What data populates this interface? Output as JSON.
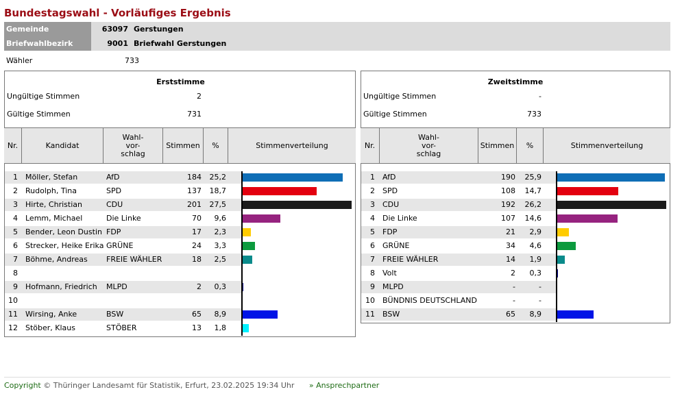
{
  "title": "Bundestagswahl - Vorläufiges Ergebnis",
  "info": {
    "gemeinde_label": "Gemeinde",
    "gemeinde_nr": "63097",
    "gemeinde_name": "Gerstungen",
    "bezirk_label": "Briefwahlbezirk",
    "bezirk_nr": "9001",
    "bezirk_name": "Briefwahl Gerstungen"
  },
  "waehler": {
    "label": "Wähler",
    "value": "733"
  },
  "erst": {
    "title": "Erststimme",
    "ungueltig_label": "Ungültige Stimmen",
    "ungueltig_value": "2",
    "gueltig_label": "Gültige Stimmen",
    "gueltig_value": "731",
    "headers": {
      "nr": "Nr.",
      "kandidat": "Kandidat",
      "wahl": "Wahl-\nvor-\nschlag",
      "stimmen": "Stimmen",
      "pct": "%",
      "vert": "Stimmenverteilung"
    },
    "rows": [
      {
        "nr": "1",
        "kandidat": "Möller, Stefan",
        "partei": "AfD",
        "stimmen": "184",
        "pct": "25,2",
        "value": 25.2,
        "color": "#0f6eb6"
      },
      {
        "nr": "2",
        "kandidat": "Rudolph, Tina",
        "partei": "SPD",
        "stimmen": "137",
        "pct": "18,7",
        "value": 18.7,
        "color": "#e3000f"
      },
      {
        "nr": "3",
        "kandidat": "Hirte, Christian",
        "partei": "CDU",
        "stimmen": "201",
        "pct": "27,5",
        "value": 27.5,
        "color": "#1b1b1b"
      },
      {
        "nr": "4",
        "kandidat": "Lemm, Michael",
        "partei": "Die Linke",
        "stimmen": "70",
        "pct": "9,6",
        "value": 9.6,
        "color": "#96237f"
      },
      {
        "nr": "5",
        "kandidat": "Bender, Leon Dustin",
        "partei": "FDP",
        "stimmen": "17",
        "pct": "2,3",
        "value": 2.3,
        "color": "#ffcc00"
      },
      {
        "nr": "6",
        "kandidat": "Strecker, Heike Erika",
        "partei": "GRÜNE",
        "stimmen": "24",
        "pct": "3,3",
        "value": 3.3,
        "color": "#0c9a3e"
      },
      {
        "nr": "7",
        "kandidat": "Böhme, Andreas",
        "partei": "FREIE WÄHLER",
        "stimmen": "18",
        "pct": "2,5",
        "value": 2.5,
        "color": "#0a8b8b"
      },
      {
        "nr": "8",
        "kandidat": "",
        "partei": "",
        "stimmen": "",
        "pct": "",
        "value": 0,
        "color": "#000000"
      },
      {
        "nr": "9",
        "kandidat": "Hofmann, Friedrich",
        "partei": "MLPD",
        "stimmen": "2",
        "pct": "0,3",
        "value": 0.3,
        "color": "#00008b"
      },
      {
        "nr": "10",
        "kandidat": "",
        "partei": "",
        "stimmen": "",
        "pct": "",
        "value": 0,
        "color": "#000000"
      },
      {
        "nr": "11",
        "kandidat": "Wirsing, Anke",
        "partei": "BSW",
        "stimmen": "65",
        "pct": "8,9",
        "value": 8.9,
        "color": "#0014e6"
      },
      {
        "nr": "12",
        "kandidat": "Stöber, Klaus",
        "partei": "STÖBER",
        "stimmen": "13",
        "pct": "1,8",
        "value": 1.8,
        "color": "#00f0ff"
      }
    ]
  },
  "zweit": {
    "title": "Zweitstimme",
    "ungueltig_label": "Ungültige Stimmen",
    "ungueltig_value": "-",
    "gueltig_label": "Gültige Stimmen",
    "gueltig_value": "733",
    "headers": {
      "nr": "Nr.",
      "wahl": "Wahl-\nvor-\nschlag",
      "stimmen": "Stimmen",
      "pct": "%",
      "vert": "Stimmenverteilung"
    },
    "rows": [
      {
        "nr": "1",
        "partei": "AfD",
        "stimmen": "190",
        "pct": "25,9",
        "value": 25.9,
        "color": "#0f6eb6"
      },
      {
        "nr": "2",
        "partei": "SPD",
        "stimmen": "108",
        "pct": "14,7",
        "value": 14.7,
        "color": "#e3000f"
      },
      {
        "nr": "3",
        "partei": "CDU",
        "stimmen": "192",
        "pct": "26,2",
        "value": 26.2,
        "color": "#1b1b1b"
      },
      {
        "nr": "4",
        "partei": "Die Linke",
        "stimmen": "107",
        "pct": "14,6",
        "value": 14.6,
        "color": "#96237f"
      },
      {
        "nr": "5",
        "partei": "FDP",
        "stimmen": "21",
        "pct": "2,9",
        "value": 2.9,
        "color": "#ffcc00"
      },
      {
        "nr": "6",
        "partei": "GRÜNE",
        "stimmen": "34",
        "pct": "4,6",
        "value": 4.6,
        "color": "#0c9a3e"
      },
      {
        "nr": "7",
        "partei": "FREIE WÄHLER",
        "stimmen": "14",
        "pct": "1,9",
        "value": 1.9,
        "color": "#0a8b8b"
      },
      {
        "nr": "8",
        "partei": "Volt",
        "stimmen": "2",
        "pct": "0,3",
        "value": 0.3,
        "color": "#00008b"
      },
      {
        "nr": "9",
        "partei": "MLPD",
        "stimmen": "-",
        "pct": "-",
        "value": 0,
        "color": "#000000"
      },
      {
        "nr": "10",
        "partei": "BÜNDNIS DEUTSCHLAND",
        "stimmen": "-",
        "pct": "-",
        "value": 0,
        "color": "#000000"
      },
      {
        "nr": "11",
        "partei": "BSW",
        "stimmen": "65",
        "pct": "8,9",
        "value": 8.9,
        "color": "#0014e6"
      }
    ]
  },
  "footer": {
    "copyright": "Copyright",
    "text": "© Thüringer Landesamt für Statistik, Erfurt, 23.02.2025 19:34 Uhr",
    "link": "» Ansprechpartner"
  }
}
